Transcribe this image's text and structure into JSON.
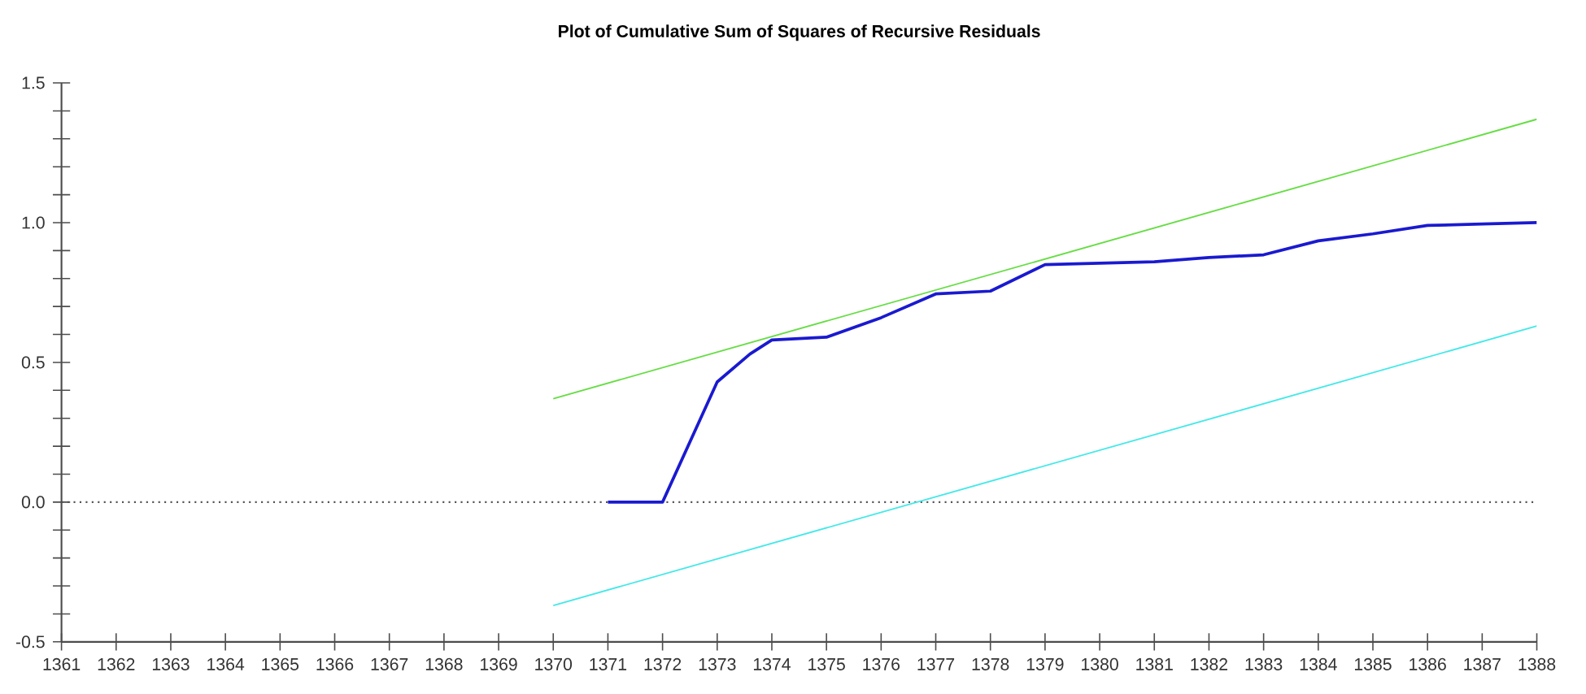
{
  "chart_data": {
    "type": "line",
    "title": "Plot of Cumulative Sum of Squares of Recursive Residuals",
    "xlim": [
      1361,
      1388
    ],
    "xticks": [
      1361,
      1362,
      1363,
      1364,
      1365,
      1366,
      1367,
      1368,
      1369,
      1370,
      1371,
      1372,
      1373,
      1374,
      1375,
      1376,
      1377,
      1378,
      1379,
      1380,
      1381,
      1382,
      1383,
      1384,
      1385,
      1386,
      1387,
      1388
    ],
    "ylim": [
      -0.5,
      1.5
    ],
    "yticks": [
      {
        "value": -0.5,
        "label": "-0.5"
      },
      {
        "value": -0.4,
        "label": null
      },
      {
        "value": -0.3,
        "label": null
      },
      {
        "value": -0.2,
        "label": null
      },
      {
        "value": -0.1,
        "label": null
      },
      {
        "value": 0,
        "label": "0.0"
      },
      {
        "value": 0.1,
        "label": null
      },
      {
        "value": 0.2,
        "label": null
      },
      {
        "value": 0.3,
        "label": null
      },
      {
        "value": 0.4,
        "label": null
      },
      {
        "value": 0.5,
        "label": "0.5"
      },
      {
        "value": 0.6,
        "label": null
      },
      {
        "value": 0.7,
        "label": null
      },
      {
        "value": 0.8,
        "label": null
      },
      {
        "value": 0.9,
        "label": null
      },
      {
        "value": 1.0,
        "label": "1.0"
      },
      {
        "value": 1.1,
        "label": null
      },
      {
        "value": 1.2,
        "label": null
      },
      {
        "value": 1.3,
        "label": null
      },
      {
        "value": 1.4,
        "label": null
      },
      {
        "value": 1.5,
        "label": "1.5"
      }
    ],
    "grid": false,
    "marker": "none",
    "ref_lines": [
      {
        "axis": "y",
        "value": 0,
        "color": "#555555",
        "line_style": "dotted"
      }
    ],
    "series": [
      {
        "color": "#1a1ad0",
        "x": [
          1371,
          1372,
          1373,
          1373.6,
          1374,
          1375,
          1376,
          1377,
          1378,
          1379,
          1380,
          1381,
          1382,
          1383,
          1384,
          1385,
          1386,
          1387,
          1388
        ],
        "values": [
          0,
          0,
          0.43,
          0.53,
          0.58,
          0.59,
          0.66,
          0.745,
          0.755,
          0.85,
          0.855,
          0.86,
          0.875,
          0.885,
          0.935,
          0.96,
          0.99,
          0.995,
          1.0
        ]
      },
      {
        "color": "#66dd44",
        "x": [
          1370,
          1388
        ],
        "values": [
          0.37,
          1.37
        ]
      },
      {
        "color": "#44e8e8",
        "x": [
          1370,
          1388
        ],
        "values": [
          -0.37,
          0.63
        ]
      }
    ]
  }
}
